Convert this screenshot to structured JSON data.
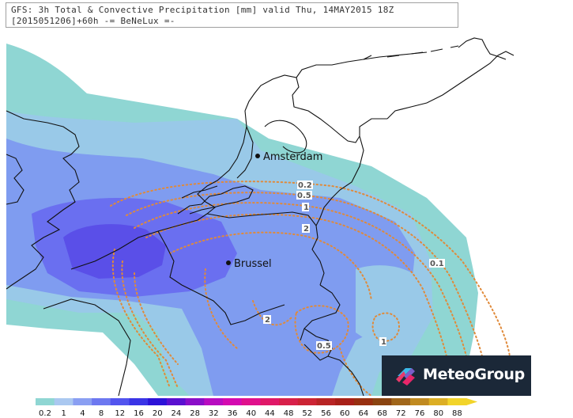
{
  "header": {
    "line1": "GFS: 3h Total & Convective Precipitation [mm] valid Thu, 14MAY2015 18Z",
    "line2": "[2015051206]+60h -= BeNeLux =-"
  },
  "cities": [
    {
      "name": "Amsterdam"
    },
    {
      "name": "Brussel"
    }
  ],
  "contour_labels": [
    "0.2",
    "0.5",
    "1",
    "2",
    "0.1",
    "2",
    "0.5",
    "1"
  ],
  "colors": {
    "precip_light": "#8fd6d3",
    "precip_low": "#99c9e8",
    "precip_mid": "#7f9cf0",
    "precip_high": "#6a6ff0",
    "precip_max": "#5a4fe8",
    "convective_contour": "#e08a3a",
    "border": "#111111"
  },
  "scale": {
    "labels": [
      "0.2",
      "1",
      "4",
      "8",
      "12",
      "16",
      "20",
      "24",
      "28",
      "32",
      "36",
      "40",
      "44",
      "48",
      "52",
      "56",
      "60",
      "64",
      "68",
      "72",
      "76",
      "80",
      "88"
    ],
    "colors": [
      "#8fd6d3",
      "#aac8f0",
      "#8a9ff2",
      "#6d78f0",
      "#5254ee",
      "#3a34e6",
      "#2c12d8",
      "#5a10d0",
      "#8a0ec8",
      "#b80cc0",
      "#d40ab0",
      "#e0108c",
      "#e01868",
      "#d8204a",
      "#cc2434",
      "#b82424",
      "#a82018",
      "#983010",
      "#8a4410",
      "#a0661a",
      "#c08a20",
      "#dcae24",
      "#f2d42a"
    ]
  },
  "logo": {
    "text": "MeteoGroup"
  }
}
